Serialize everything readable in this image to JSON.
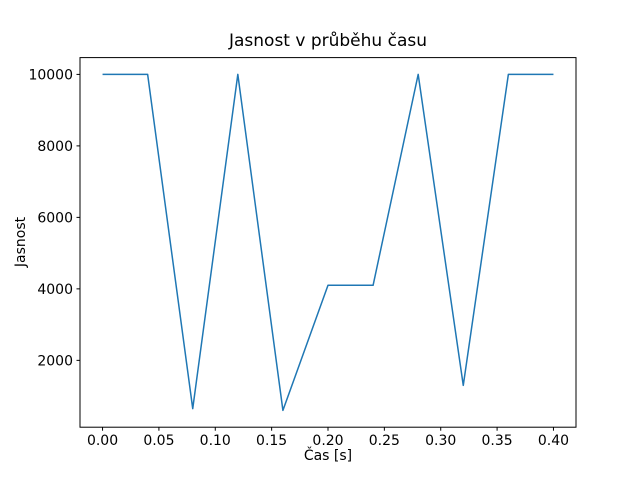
{
  "window": {
    "background_color": "#ffffff"
  },
  "chart_data": {
    "type": "line",
    "title": "Jasnost v průběhu času",
    "xlabel": "Čas [s]",
    "ylabel": "Jasnost",
    "x": [
      0.0,
      0.04,
      0.08,
      0.12,
      0.16,
      0.2,
      0.24,
      0.28,
      0.32,
      0.36,
      0.4
    ],
    "y": [
      10000,
      10000,
      650,
      10000,
      600,
      4100,
      4100,
      10000,
      1300,
      10000,
      10000
    ],
    "line_color": "#1f77b4",
    "line_width": 1.5,
    "xlim": [
      -0.02,
      0.42
    ],
    "ylim": [
      130,
      10470
    ],
    "xticks": {
      "values": [
        0.0,
        0.05,
        0.1,
        0.15,
        0.2,
        0.25,
        0.3,
        0.35,
        0.4
      ],
      "labels": [
        "0.00",
        "0.05",
        "0.10",
        "0.15",
        "0.20",
        "0.25",
        "0.30",
        "0.35",
        "0.40"
      ]
    },
    "yticks": {
      "values": [
        2000,
        4000,
        6000,
        8000,
        10000
      ],
      "labels": [
        "2000",
        "4000",
        "6000",
        "8000",
        "10000"
      ]
    },
    "grid": false,
    "legend": "none",
    "axes_color": "#000000"
  }
}
